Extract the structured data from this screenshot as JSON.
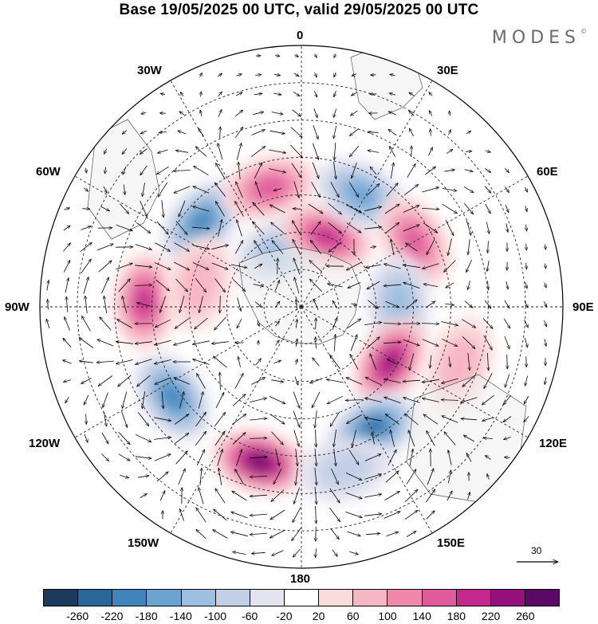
{
  "title": "Base 19/05/2025 00 UTC, valid 29/05/2025 00 UTC",
  "brand": {
    "name": "MODES",
    "mark": "©"
  },
  "longitude_labels": [
    {
      "name": "lon-0",
      "text": "0"
    },
    {
      "name": "lon-30e",
      "text": "30E"
    },
    {
      "name": "lon-60e",
      "text": "60E"
    },
    {
      "name": "lon-90e",
      "text": "90E"
    },
    {
      "name": "lon-120e",
      "text": "120E"
    },
    {
      "name": "lon-150e",
      "text": "150E"
    },
    {
      "name": "lon-180",
      "text": "180"
    },
    {
      "name": "lon-150w",
      "text": "150W"
    },
    {
      "name": "lon-120w",
      "text": "120W"
    },
    {
      "name": "lon-90w",
      "text": "90W"
    },
    {
      "name": "lon-60w",
      "text": "60W"
    },
    {
      "name": "lon-30w",
      "text": "30W"
    }
  ],
  "vector_scale": {
    "label": "30"
  },
  "colorbar": {
    "colors": [
      "#1b3a5c",
      "#2a6799",
      "#3f84bd",
      "#6ba3d1",
      "#9dbfe0",
      "#c3cfe6",
      "#e4e3f0",
      "#ffffff",
      "#fbdcdc",
      "#f7b6c3",
      "#ef88ab",
      "#e05a9e",
      "#c4288f",
      "#94117d",
      "#5a0a66"
    ],
    "ticks": [
      "-260",
      "-220",
      "-180",
      "-140",
      "-100",
      "-60",
      "-20",
      "20",
      "60",
      "100",
      "140",
      "180",
      "220",
      "260"
    ]
  },
  "anomalies": [
    {
      "lat": -55,
      "lon": -50,
      "value": -170
    },
    {
      "lat": -57,
      "lon": -15,
      "value": 140
    },
    {
      "lat": -74,
      "lon": -20,
      "value": -90
    },
    {
      "lat": -70,
      "lon": 20,
      "value": 180
    },
    {
      "lat": -56,
      "lon": 28,
      "value": -150
    },
    {
      "lat": -55,
      "lon": 60,
      "value": 150
    },
    {
      "lat": -64,
      "lon": 88,
      "value": -110
    },
    {
      "lat": -62,
      "lon": 122,
      "value": 230
    },
    {
      "lat": -52,
      "lon": 150,
      "value": -220
    },
    {
      "lat": -47,
      "lon": -165,
      "value": 260
    },
    {
      "lat": -48,
      "lon": -125,
      "value": -170
    },
    {
      "lat": -48,
      "lon": -88,
      "value": 200
    },
    {
      "lat": -62,
      "lon": -77,
      "value": 60
    },
    {
      "lat": -45,
      "lon": 165,
      "value": -80
    },
    {
      "lat": -45,
      "lon": 110,
      "value": 70
    }
  ]
}
